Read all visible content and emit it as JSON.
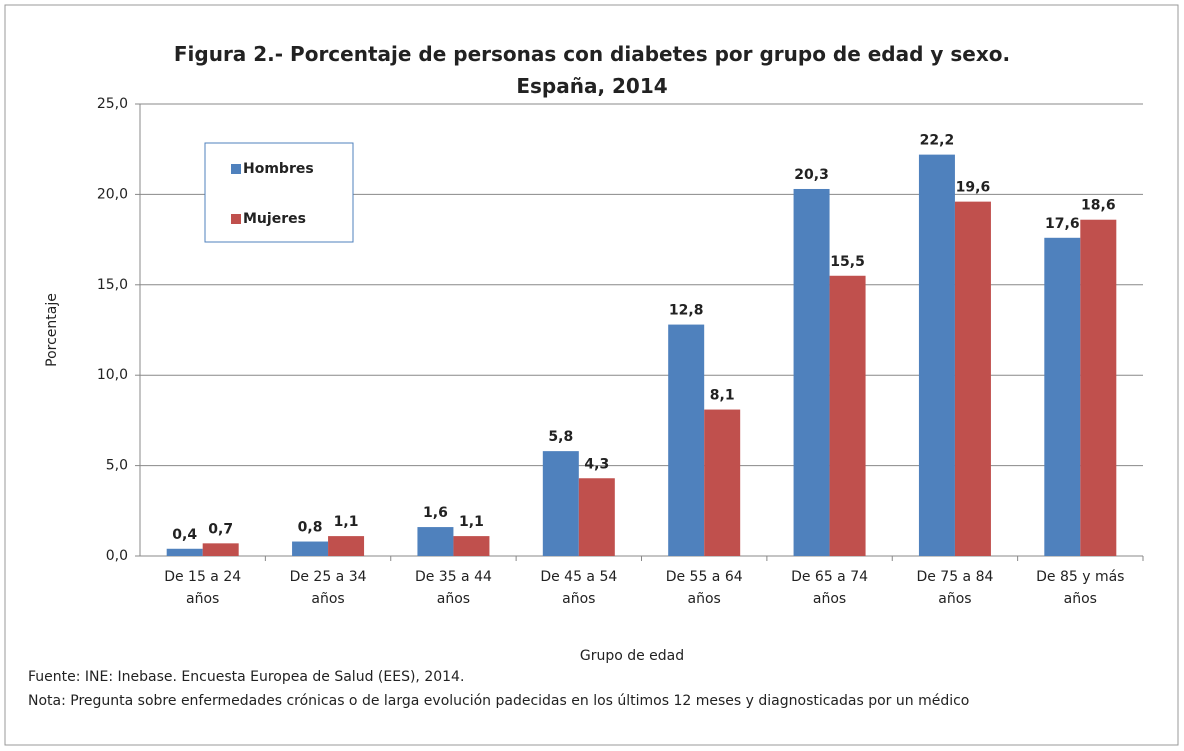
{
  "chart_data": {
    "type": "bar",
    "title": "Figura 2.- Porcentaje de personas con diabetes por grupo de edad y sexo. España, 2014",
    "categories": [
      "De 15 a 24 años",
      "De 25 a 34 años",
      "De 35 a 44 años",
      "De 45 a 54 años",
      "De 55 a 64 años",
      "De 65 a 74 años",
      "De 75 a 84 años",
      "De 85 y más años"
    ],
    "series": [
      {
        "name": "Hombres",
        "color": "#4f81bd",
        "values": [
          0.4,
          0.8,
          1.6,
          5.8,
          12.8,
          20.3,
          22.2,
          17.6
        ],
        "value_labels": [
          "0,4",
          "0,8",
          "1,6",
          "5,8",
          "12,8",
          "20,3",
          "22,2",
          "17,6"
        ]
      },
      {
        "name": "Mujeres",
        "color": "#c0504d",
        "values": [
          0.7,
          1.1,
          1.1,
          4.3,
          8.1,
          15.5,
          19.6,
          18.6
        ],
        "value_labels": [
          "0,7",
          "1,1",
          "1,1",
          "4,3",
          "8,1",
          "15,5",
          "19,6",
          "18,6"
        ]
      }
    ],
    "ylim": [
      0,
      25
    ],
    "yticks": [
      {
        "value": 0,
        "label": "0,0"
      },
      {
        "value": 5,
        "label": "5,0"
      },
      {
        "value": 10,
        "label": "10,0"
      },
      {
        "value": 15,
        "label": "15,0"
      },
      {
        "value": 20,
        "label": "20,0"
      },
      {
        "value": 25,
        "label": "25,0"
      }
    ],
    "grid": true,
    "legend": "upper left",
    "ylabel": "Porcentaje",
    "xlabel": "Grupo de edad",
    "source": "Fuente: INE:  Inebase. Encuesta Europea de Salud (EES), 2014.",
    "note": "Nota: Pregunta sobre enfermedades crónicas o de larga evolución padecidas en los últimos  12 meses y diagnosticadas  por un médico"
  }
}
